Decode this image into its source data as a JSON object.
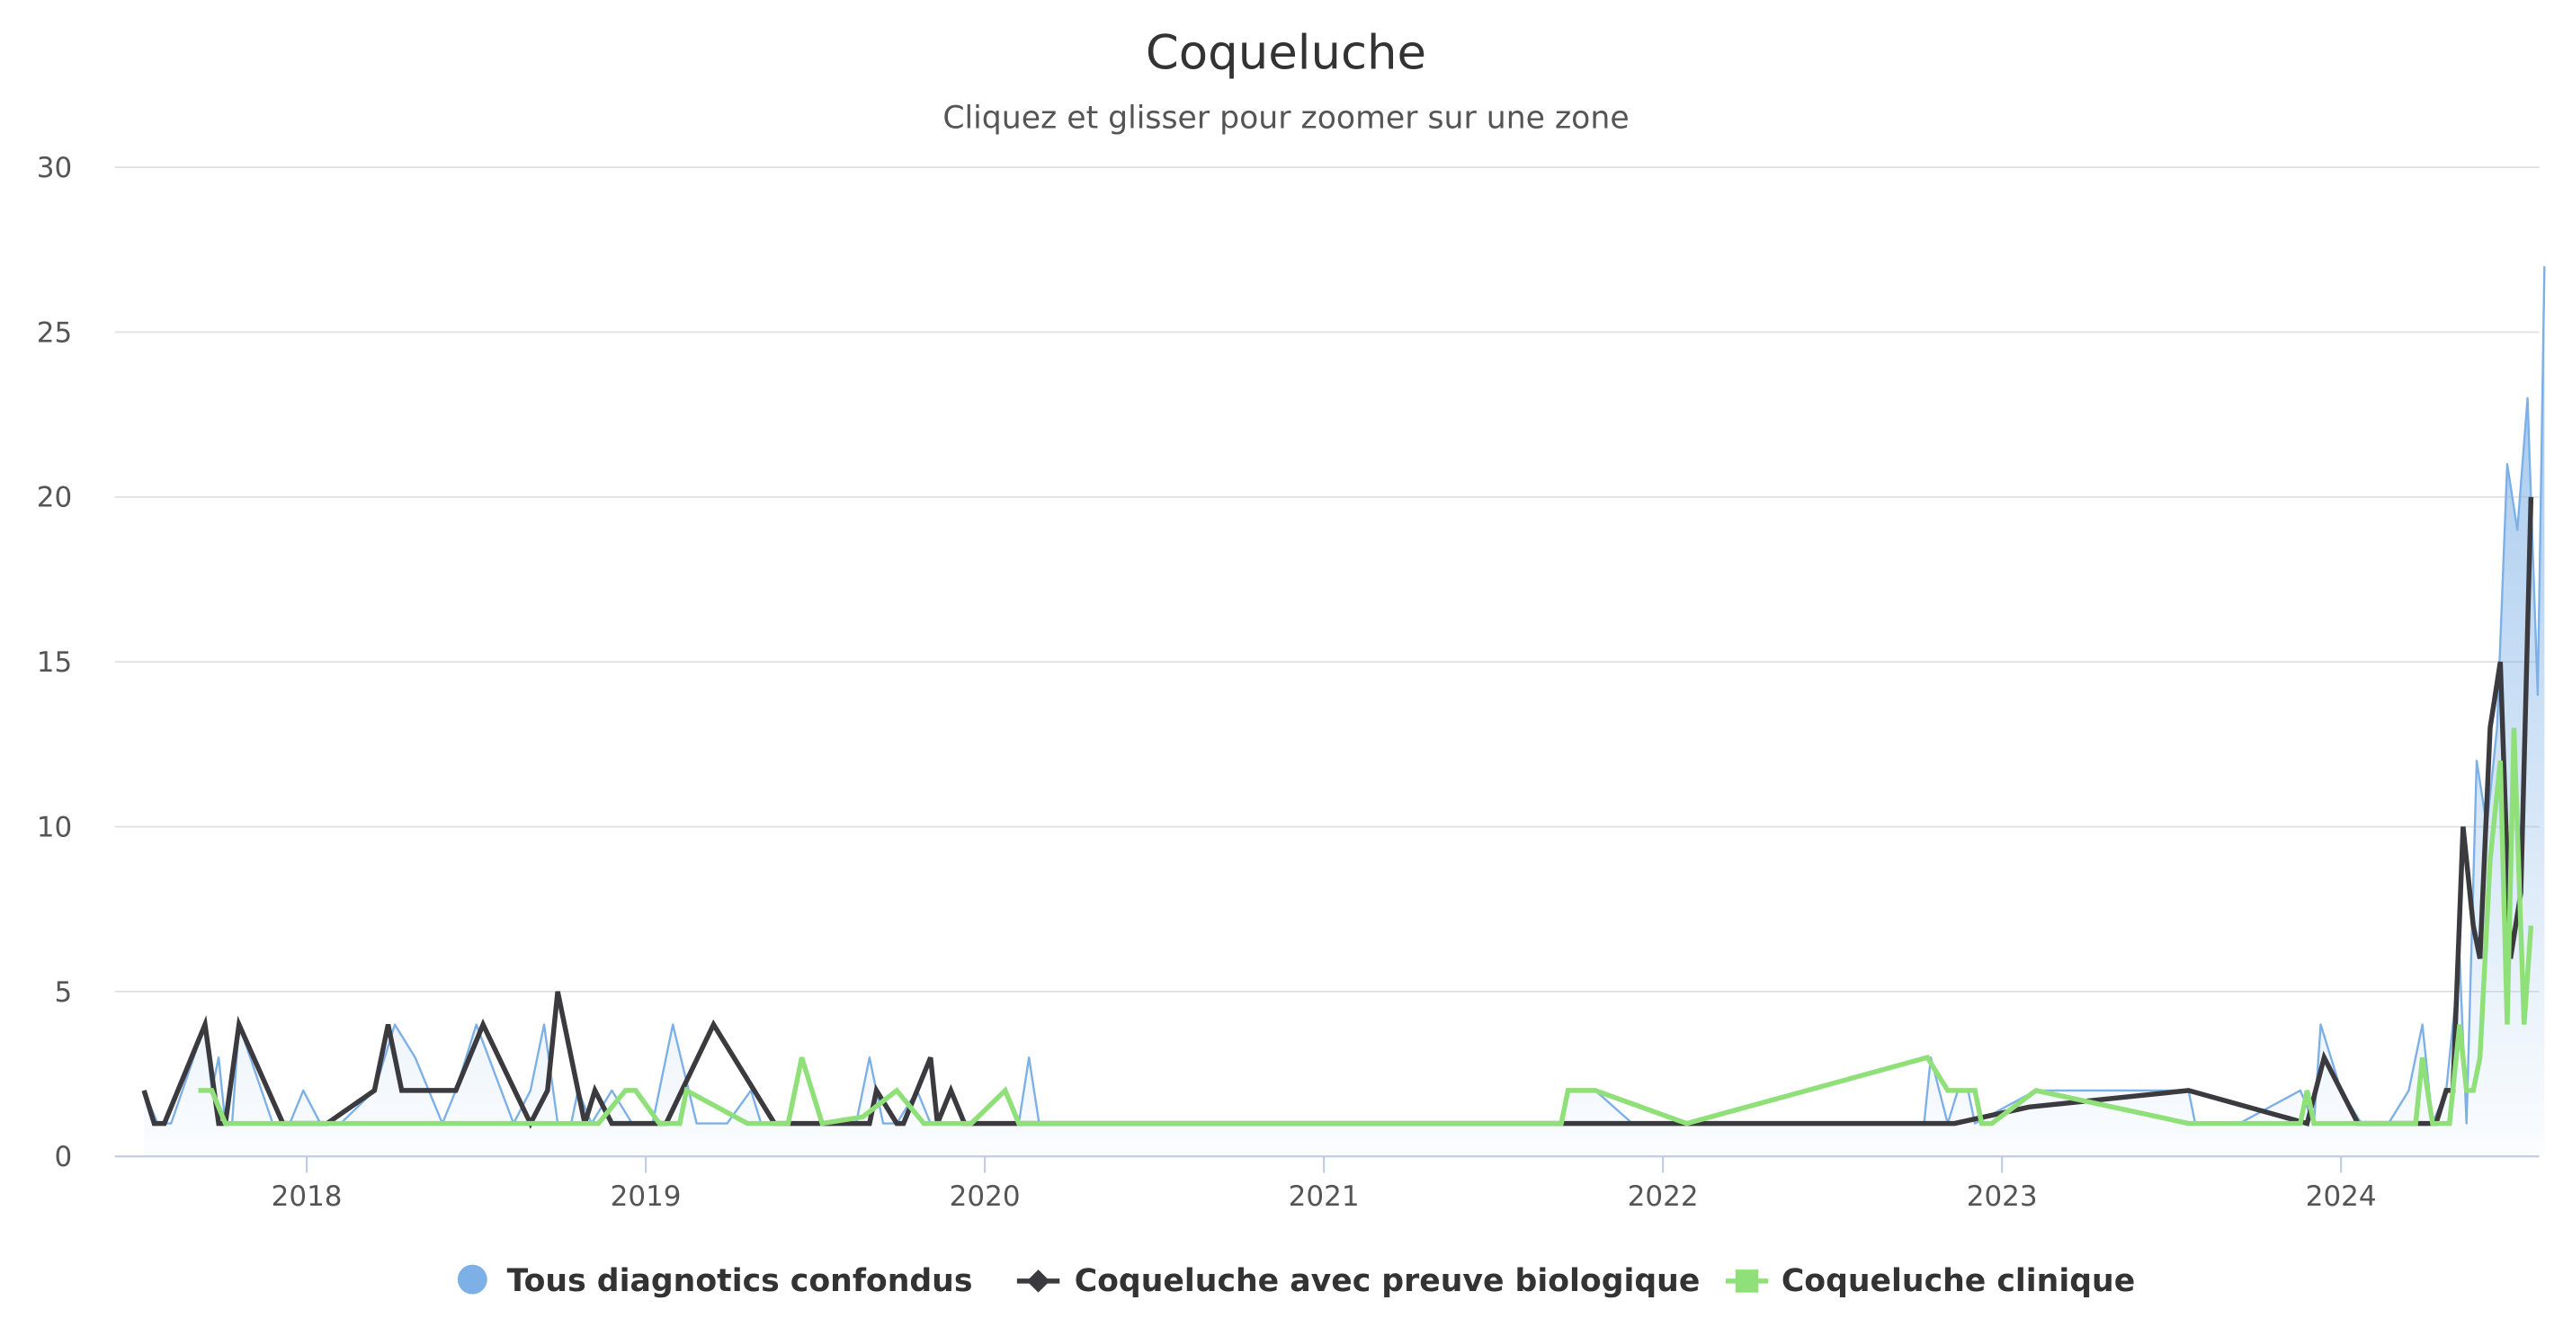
{
  "header": {
    "title": "Coqueluche",
    "subtitle": "Cliquez et glisser pour zoomer sur une zone"
  },
  "legend": [
    {
      "label": "Tous diagnotics confondus",
      "color": "#7cb0e6",
      "symbol": "circle"
    },
    {
      "label": "Coqueluche avec preuve biologique",
      "color": "#3a3a3f",
      "symbol": "diamond"
    },
    {
      "label": "Coqueluche clinique",
      "color": "#90e07a",
      "symbol": "square"
    }
  ],
  "chart_data": {
    "type": "line",
    "title": "Coqueluche",
    "subtitle": "Cliquez et glisser pour zoomer sur une zone",
    "xlabel": "",
    "ylabel": "",
    "xlim": [
      2017.45,
      2024.6
    ],
    "ylim": [
      0,
      30
    ],
    "yticks": [
      0,
      5,
      10,
      15,
      20,
      25,
      30
    ],
    "xticks": [
      "2018",
      "2019",
      "2020",
      "2021",
      "2022",
      "2023",
      "2024"
    ],
    "grid": true,
    "legend_position": "bottom",
    "series": [
      {
        "name": "Tous diagnotics confondus",
        "type": "area",
        "color": "#7cb0e6",
        "points": [
          [
            2017.52,
            2
          ],
          [
            2017.56,
            1
          ],
          [
            2017.6,
            1
          ],
          [
            2017.7,
            4
          ],
          [
            2017.72,
            2
          ],
          [
            2017.74,
            3
          ],
          [
            2017.76,
            1
          ],
          [
            2017.78,
            1
          ],
          [
            2017.8,
            4
          ],
          [
            2017.9,
            1
          ],
          [
            2017.95,
            1
          ],
          [
            2017.99,
            2
          ],
          [
            2018.04,
            1
          ],
          [
            2018.1,
            1
          ],
          [
            2018.2,
            2
          ],
          [
            2018.26,
            4
          ],
          [
            2018.32,
            3
          ],
          [
            2018.4,
            1
          ],
          [
            2018.44,
            2
          ],
          [
            2018.5,
            4
          ],
          [
            2018.61,
            1
          ],
          [
            2018.66,
            2
          ],
          [
            2018.7,
            4
          ],
          [
            2018.74,
            1
          ],
          [
            2018.78,
            1
          ],
          [
            2018.8,
            2
          ],
          [
            2018.84,
            1
          ],
          [
            2018.9,
            2
          ],
          [
            2018.96,
            1
          ],
          [
            2019.02,
            1
          ],
          [
            2019.08,
            4
          ],
          [
            2019.15,
            1
          ],
          [
            2019.24,
            1
          ],
          [
            2019.31,
            2
          ],
          [
            2019.34,
            1
          ],
          [
            2019.4,
            1
          ],
          [
            2019.46,
            1
          ],
          [
            2019.52,
            1
          ],
          [
            2019.58,
            1
          ],
          [
            2019.62,
            1
          ],
          [
            2019.66,
            3
          ],
          [
            2019.7,
            1
          ],
          [
            2019.74,
            1
          ],
          [
            2019.8,
            2
          ],
          [
            2019.84,
            1
          ],
          [
            2019.9,
            1
          ],
          [
            2019.96,
            1
          ],
          [
            2020.04,
            1
          ],
          [
            2020.08,
            1
          ],
          [
            2020.1,
            1
          ],
          [
            2020.13,
            3
          ],
          [
            2020.16,
            1
          ],
          [
            2021.7,
            1
          ],
          [
            2021.72,
            2
          ],
          [
            2021.8,
            2
          ],
          [
            2021.91,
            1
          ],
          [
            2022.4,
            1
          ],
          [
            2022.77,
            1
          ],
          [
            2022.79,
            3
          ],
          [
            2022.84,
            1
          ],
          [
            2022.87,
            2
          ],
          [
            2022.9,
            2
          ],
          [
            2022.92,
            1
          ],
          [
            2023.1,
            2
          ],
          [
            2023.55,
            2
          ],
          [
            2023.57,
            1
          ],
          [
            2023.7,
            1
          ],
          [
            2023.88,
            2
          ],
          [
            2023.92,
            1
          ],
          [
            2023.94,
            4
          ],
          [
            2024.0,
            2
          ],
          [
            2024.06,
            1
          ],
          [
            2024.14,
            1
          ],
          [
            2024.2,
            2
          ],
          [
            2024.24,
            4
          ],
          [
            2024.27,
            1
          ],
          [
            2024.31,
            2
          ],
          [
            2024.35,
            6
          ],
          [
            2024.37,
            1
          ],
          [
            2024.4,
            12
          ],
          [
            2024.43,
            10
          ],
          [
            2024.46,
            13
          ],
          [
            2024.49,
            21
          ],
          [
            2024.52,
            19
          ],
          [
            2024.55,
            23
          ],
          [
            2024.58,
            14
          ],
          [
            2024.6,
            27
          ]
        ]
      },
      {
        "name": "Coqueluche avec preuve biologique",
        "type": "line",
        "color": "#3a3a3f",
        "points": [
          [
            2017.52,
            2
          ],
          [
            2017.55,
            1
          ],
          [
            2017.58,
            1
          ],
          [
            2017.7,
            4
          ],
          [
            2017.74,
            1
          ],
          [
            2017.76,
            1
          ],
          [
            2017.8,
            4
          ],
          [
            2017.93,
            1
          ],
          [
            2018.06,
            1
          ],
          [
            2018.2,
            2
          ],
          [
            2018.24,
            4
          ],
          [
            2018.28,
            2
          ],
          [
            2018.39,
            2
          ],
          [
            2018.44,
            2
          ],
          [
            2018.52,
            4
          ],
          [
            2018.66,
            1
          ],
          [
            2018.71,
            2
          ],
          [
            2018.74,
            5
          ],
          [
            2018.82,
            1
          ],
          [
            2018.85,
            2
          ],
          [
            2018.9,
            1
          ],
          [
            2018.98,
            1
          ],
          [
            2019.06,
            1
          ],
          [
            2019.2,
            4
          ],
          [
            2019.38,
            1
          ],
          [
            2019.55,
            1
          ],
          [
            2019.6,
            1
          ],
          [
            2019.66,
            1
          ],
          [
            2019.68,
            2
          ],
          [
            2019.74,
            1
          ],
          [
            2019.76,
            1
          ],
          [
            2019.8,
            2
          ],
          [
            2019.84,
            3
          ],
          [
            2019.86,
            1
          ],
          [
            2019.9,
            2
          ],
          [
            2019.94,
            1
          ],
          [
            2020.0,
            1
          ],
          [
            2021.7,
            1
          ],
          [
            2022.86,
            1
          ],
          [
            2023.08,
            1.5
          ],
          [
            2023.55,
            2
          ],
          [
            2023.9,
            1
          ],
          [
            2023.95,
            3
          ],
          [
            2024.05,
            1
          ],
          [
            2024.28,
            1
          ],
          [
            2024.31,
            2
          ],
          [
            2024.33,
            2
          ],
          [
            2024.36,
            10
          ],
          [
            2024.39,
            7
          ],
          [
            2024.41,
            6
          ],
          [
            2024.44,
            13
          ],
          [
            2024.47,
            15
          ],
          [
            2024.5,
            6
          ],
          [
            2024.53,
            8
          ],
          [
            2024.56,
            20
          ]
        ]
      },
      {
        "name": "Coqueluche clinique",
        "type": "line",
        "color": "#90e07a",
        "points": [
          [
            2017.68,
            2
          ],
          [
            2017.72,
            2
          ],
          [
            2017.76,
            1
          ],
          [
            2018.86,
            1
          ],
          [
            2018.94,
            2
          ],
          [
            2018.97,
            2
          ],
          [
            2019.04,
            1
          ],
          [
            2019.1,
            1
          ],
          [
            2019.12,
            2
          ],
          [
            2019.3,
            1
          ],
          [
            2019.42,
            1
          ],
          [
            2019.46,
            3
          ],
          [
            2019.52,
            1
          ],
          [
            2019.64,
            1.2
          ],
          [
            2019.74,
            2
          ],
          [
            2019.82,
            1
          ],
          [
            2019.96,
            1
          ],
          [
            2020.06,
            2
          ],
          [
            2020.1,
            1
          ],
          [
            2021.7,
            1
          ],
          [
            2021.72,
            2
          ],
          [
            2021.8,
            2
          ],
          [
            2022.07,
            1
          ],
          [
            2022.78,
            3
          ],
          [
            2022.84,
            2
          ],
          [
            2022.92,
            2
          ],
          [
            2022.94,
            1
          ],
          [
            2022.97,
            1
          ],
          [
            2023.1,
            2
          ],
          [
            2023.55,
            1
          ],
          [
            2023.88,
            1
          ],
          [
            2023.9,
            2
          ],
          [
            2023.92,
            1
          ],
          [
            2024.22,
            1
          ],
          [
            2024.24,
            3
          ],
          [
            2024.27,
            1
          ],
          [
            2024.3,
            1
          ],
          [
            2024.32,
            1
          ],
          [
            2024.35,
            4
          ],
          [
            2024.37,
            2
          ],
          [
            2024.39,
            2
          ],
          [
            2024.41,
            3
          ],
          [
            2024.44,
            9
          ],
          [
            2024.47,
            12
          ],
          [
            2024.49,
            4
          ],
          [
            2024.51,
            13
          ],
          [
            2024.54,
            4
          ],
          [
            2024.56,
            7
          ]
        ]
      }
    ]
  },
  "axis": {
    "y_labels": [
      "0",
      "5",
      "10",
      "15",
      "20",
      "25",
      "30"
    ],
    "x_labels": [
      "2018",
      "2019",
      "2020",
      "2021",
      "2022",
      "2023",
      "2024"
    ]
  }
}
